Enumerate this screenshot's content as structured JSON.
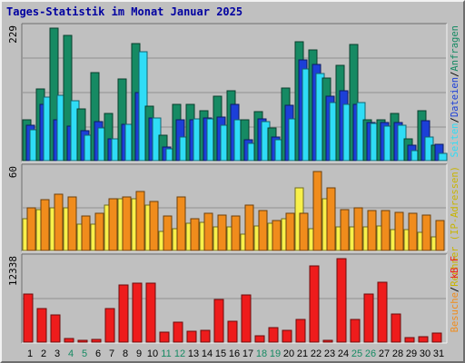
{
  "title": "Tages-Statistik im Monat Januar 2025",
  "colors": {
    "frame": "#c0c0c0",
    "panel": "#c0c0c0",
    "grid": "#909090",
    "hits": "#168a63",
    "files": "#1c3fd8",
    "pages": "#2fdcf6",
    "visits": "#f08c1c",
    "sites": "#f8f04a",
    "kbytes": "#ee1c1c",
    "weekend_label": "#168a63",
    "weekday_label": "#000000"
  },
  "chart_data": [
    {
      "type": "bar",
      "title": "Tages-Statistik im Monat Januar 2025",
      "ylabel": "229",
      "ylim": [
        0,
        229
      ],
      "right_legend": [
        "Anfragen",
        "Dateien",
        "Seiten"
      ],
      "right_legend_separator": "/",
      "categories": [
        "1",
        "2",
        "3",
        "4",
        "5",
        "6",
        "7",
        "8",
        "9",
        "10",
        "11",
        "12",
        "13",
        "14",
        "15",
        "16",
        "17",
        "18",
        "19",
        "20",
        "21",
        "22",
        "23",
        "24",
        "25",
        "26",
        "27",
        "28",
        "29",
        "30",
        "31"
      ],
      "weekend_days": [
        "4",
        "5",
        "11",
        "12",
        "18",
        "19",
        "25",
        "26"
      ],
      "series": [
        {
          "name": "Anfragen",
          "color": "#168a63",
          "values": [
            70,
            124,
            229,
            216,
            89,
            152,
            81,
            141,
            203,
            94,
            44,
            98,
            97,
            87,
            112,
            120,
            70,
            84,
            56,
            125,
            205,
            192,
            142,
            165,
            200,
            71,
            70,
            82,
            38,
            86,
            27
          ]
        },
        {
          "name": "Dateien",
          "color": "#1c3fd8",
          "values": [
            61,
            97,
            70,
            60,
            51,
            67,
            37,
            63,
            118,
            73,
            24,
            71,
            70,
            73,
            76,
            97,
            36,
            72,
            40,
            96,
            174,
            166,
            112,
            120,
            97,
            66,
            66,
            66,
            27,
            69,
            28
          ]
        },
        {
          "name": "Seiten",
          "color": "#2fdcf6",
          "values": [
            53,
            110,
            113,
            103,
            44,
            56,
            38,
            63,
            188,
            73,
            20,
            40,
            72,
            72,
            61,
            70,
            30,
            67,
            36,
            72,
            159,
            150,
            100,
            98,
            101,
            65,
            60,
            61,
            18,
            41,
            13
          ]
        }
      ]
    },
    {
      "type": "bar",
      "ylabel": "60",
      "ylim": [
        0,
        60
      ],
      "right_legend": [
        "Rechner (IP-Adressen)",
        "Besuche"
      ],
      "right_legend_separator": "/",
      "categories": [
        "1",
        "2",
        "3",
        "4",
        "5",
        "6",
        "7",
        "8",
        "9",
        "10",
        "11",
        "12",
        "13",
        "14",
        "15",
        "16",
        "17",
        "18",
        "19",
        "20",
        "21",
        "22",
        "23",
        "24",
        "25",
        "26",
        "27",
        "28",
        "29",
        "30",
        "31"
      ],
      "series": [
        {
          "name": "Rechner (IP-Adressen)",
          "color": "#f8f04a",
          "values": [
            23,
            30,
            31,
            31,
            19,
            19,
            33,
            38,
            38,
            33,
            14,
            16,
            20,
            21,
            17,
            17,
            12,
            18,
            20,
            23,
            46,
            16,
            38,
            17,
            17,
            17,
            18,
            15,
            15,
            13,
            10
          ]
        },
        {
          "name": "Besuche",
          "color": "#f08c1c",
          "values": [
            31,
            37,
            41,
            39,
            25,
            27,
            38,
            39,
            43,
            36,
            25,
            39,
            23,
            27,
            26,
            25,
            33,
            29,
            22,
            27,
            27,
            58,
            46,
            30,
            31,
            29,
            29,
            28,
            27,
            26,
            22
          ]
        }
      ]
    },
    {
      "type": "bar",
      "ylabel": "12338",
      "ylim": [
        0,
        12338
      ],
      "right_legend": [
        "kB F"
      ],
      "categories": [
        "1",
        "2",
        "3",
        "4",
        "5",
        "6",
        "7",
        "8",
        "9",
        "10",
        "11",
        "12",
        "13",
        "14",
        "15",
        "16",
        "17",
        "18",
        "19",
        "20",
        "21",
        "22",
        "23",
        "24",
        "25",
        "26",
        "27",
        "28",
        "29",
        "30",
        "31"
      ],
      "series": [
        {
          "name": "kB F",
          "color": "#ee1c1c",
          "values": [
            7050,
            4900,
            4050,
            600,
            250,
            450,
            4950,
            8400,
            8700,
            8700,
            1500,
            2950,
            1650,
            1800,
            6250,
            3150,
            6950,
            950,
            2150,
            1800,
            3300,
            11300,
            250,
            12338,
            3300,
            7100,
            8800,
            4200,
            700,
            750,
            1300
          ]
        }
      ]
    }
  ]
}
